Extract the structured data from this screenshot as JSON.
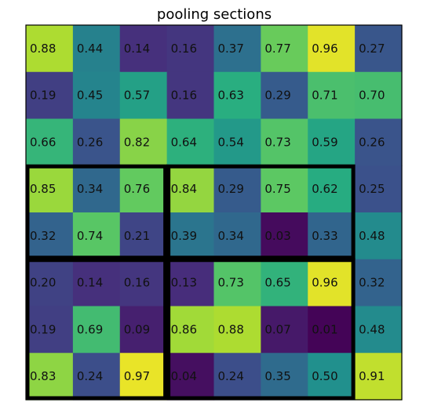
{
  "chart_data": {
    "type": "heatmap",
    "title": "pooling sections",
    "colormap": "viridis",
    "value_range": [
      0,
      1
    ],
    "grid": false,
    "rows": 8,
    "cols": 8,
    "values": [
      [
        "0.88",
        "0.44",
        "0.14",
        "0.16",
        "0.37",
        "0.77",
        "0.96",
        "0.27"
      ],
      [
        "0.19",
        "0.45",
        "0.57",
        "0.16",
        "0.63",
        "0.29",
        "0.71",
        "0.70"
      ],
      [
        "0.66",
        "0.26",
        "0.82",
        "0.64",
        "0.54",
        "0.73",
        "0.59",
        "0.26"
      ],
      [
        "0.85",
        "0.34",
        "0.76",
        "0.84",
        "0.29",
        "0.75",
        "0.62",
        "0.25"
      ],
      [
        "0.32",
        "0.74",
        "0.21",
        "0.39",
        "0.34",
        "0.03",
        "0.33",
        "0.48"
      ],
      [
        "0.20",
        "0.14",
        "0.16",
        "0.13",
        "0.73",
        "0.65",
        "0.96",
        "0.32"
      ],
      [
        "0.19",
        "0.69",
        "0.09",
        "0.86",
        "0.88",
        "0.07",
        "0.01",
        "0.48"
      ],
      [
        "0.83",
        "0.24",
        "0.97",
        "0.04",
        "0.24",
        "0.35",
        "0.50",
        "0.91"
      ]
    ],
    "pooling_sections": [
      {
        "rows": [
          3,
          4
        ],
        "cols": [
          0,
          2
        ]
      },
      {
        "rows": [
          3,
          4
        ],
        "cols": [
          3,
          6
        ]
      },
      {
        "rows": [
          5,
          7
        ],
        "cols": [
          0,
          2
        ]
      },
      {
        "rows": [
          5,
          7
        ],
        "cols": [
          3,
          6
        ]
      }
    ]
  }
}
